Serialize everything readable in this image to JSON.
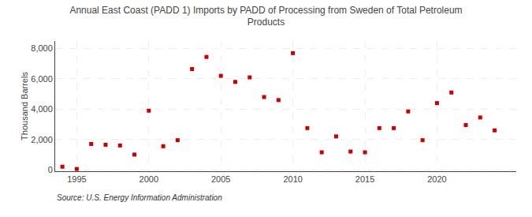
{
  "chart_data": {
    "type": "scatter",
    "title": "Annual East Coast (PADD 1) Imports by PADD of Processing from Sweden of Total Petroleum\nProducts",
    "y_label": "Thousand Barrels",
    "annotations": [
      "Source: U.S. Energy Information Administration"
    ],
    "x": [
      1994,
      1995,
      1996,
      1997,
      1998,
      1999,
      2000,
      2001,
      2002,
      2003,
      2004,
      2005,
      2006,
      2007,
      2008,
      2009,
      2010,
      2011,
      2012,
      2013,
      2014,
      2015,
      2016,
      2017,
      2018,
      2019,
      2020,
      2021,
      2022,
      2023,
      2024
    ],
    "values": [
      200,
      50,
      1700,
      1650,
      1600,
      1000,
      3900,
      1550,
      1950,
      6650,
      7450,
      6200,
      5800,
      6100,
      4800,
      4600,
      7700,
      2750,
      1150,
      2200,
      1200,
      1150,
      2750,
      2750,
      3850,
      1950,
      4400,
      5100,
      2950,
      3450,
      2600
    ],
    "color": "#cc0000",
    "marker": "square",
    "xlim": [
      1993.5,
      2025.5
    ],
    "ylim": [
      -100,
      8500
    ],
    "xticks": [
      1995,
      2000,
      2005,
      2010,
      2015,
      2020
    ],
    "yticks": [
      0,
      {
        "value": 2000,
        "label": "2,000"
      },
      {
        "value": 4000,
        "label": "4,000"
      },
      {
        "value": 6000,
        "label": "6,000"
      },
      {
        "value": 8000,
        "label": "8,000"
      }
    ],
    "grid": true
  }
}
